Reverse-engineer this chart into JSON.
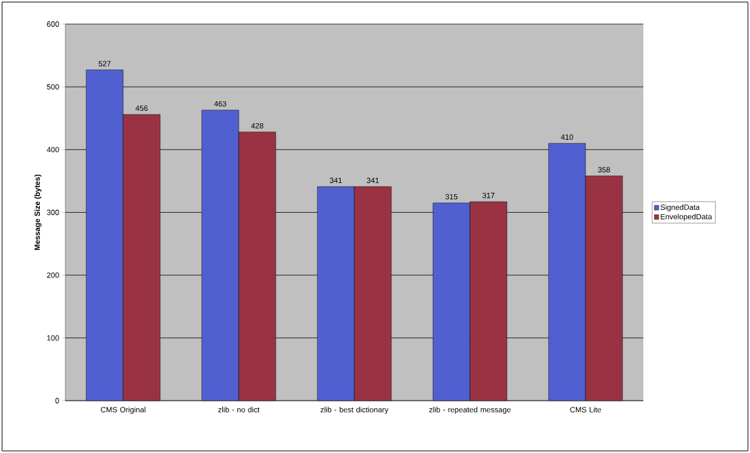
{
  "chart_data": {
    "type": "bar",
    "ylabel": "Message Size (bytes)",
    "categories": [
      "CMS Original",
      "zlib - no dict",
      "zlib - best dictionary",
      "zlib - repeated message",
      "CMS Lite"
    ],
    "series": [
      {
        "name": "SignedData",
        "color": "#5060d0",
        "values": [
          527,
          463,
          341,
          315,
          410
        ]
      },
      {
        "name": "EnvelopedData",
        "color": "#993344",
        "values": [
          456,
          428,
          341,
          317,
          358
        ]
      }
    ],
    "ylim": [
      0,
      600
    ],
    "yticks": [
      0,
      100,
      200,
      300,
      400,
      500,
      600
    ],
    "grid": "y",
    "legend": "right",
    "data_labels": true
  }
}
